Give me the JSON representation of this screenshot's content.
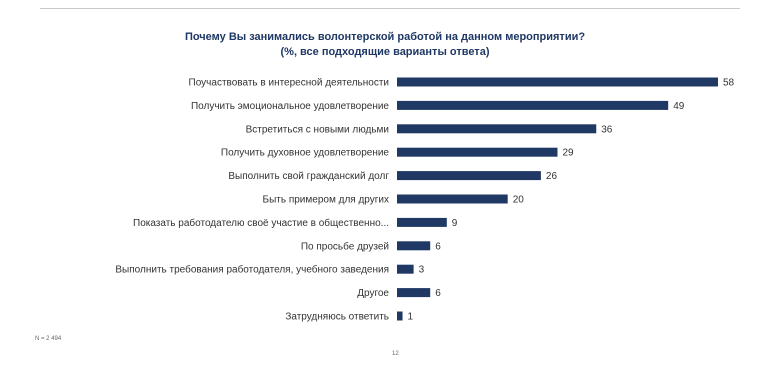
{
  "chart_data": {
    "type": "bar",
    "orientation": "horizontal",
    "title_line1": "Почему Вы занимались волонтерской работой на данном мероприятии?",
    "title_line2": "(%, все подходящие варианты ответа)",
    "categories": [
      "Поучаствовать в интересной деятельности",
      "Получить эмоциональное удовлетворение",
      "Встретиться с новыми людьми",
      "Получить духовное удовлетворение",
      "Выполнить свой гражданский долг",
      "Быть примером для других",
      "Показать работодателю своё участие в общественно...",
      "По просьбе друзей",
      "Выполнить требования работодателя, учебного заведения",
      "Другое",
      "Затрудняюсь ответить"
    ],
    "values": [
      58,
      49,
      36,
      29,
      26,
      20,
      9,
      6,
      3,
      6,
      1
    ],
    "xlim": [
      0,
      58
    ],
    "bar_color": "#1f3864",
    "grid": false,
    "legend": "none"
  },
  "footer": {
    "sample_note": "N = 2 494",
    "page_number": "12"
  }
}
